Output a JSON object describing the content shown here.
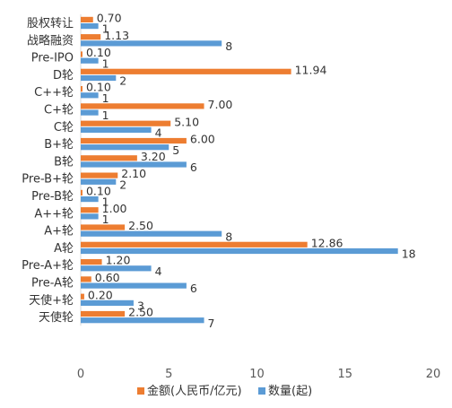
{
  "chart_data": {
    "type": "bar",
    "orientation": "horizontal",
    "categories": [
      "股权转让",
      "战略融资",
      "Pre-IPO",
      "D轮",
      "C++轮",
      "C+轮",
      "C轮",
      "B+轮",
      "B轮",
      "Pre-B+轮",
      "Pre-B轮",
      "A++轮",
      "A+轮",
      "A轮",
      "Pre-A+轮",
      "Pre-A轮",
      "天使+轮",
      "天使轮"
    ],
    "series": [
      {
        "name": "金额(人民币/亿元)",
        "color": "#ed7d31",
        "values": [
          0.7,
          1.13,
          0.1,
          11.94,
          0.1,
          7.0,
          5.1,
          6.0,
          3.2,
          2.1,
          0.1,
          1.0,
          2.5,
          12.86,
          1.2,
          0.6,
          0.2,
          2.5
        ],
        "labels": [
          "0.70",
          "1.13",
          "0.10",
          "11.94",
          "0.10",
          "7.00",
          "5.10",
          "6.00",
          "3.20",
          "2.10",
          "0.10",
          "1.00",
          "2.50",
          "12.86",
          "1.20",
          "0.60",
          "0.20",
          "2.50"
        ]
      },
      {
        "name": "数量(起)",
        "color": "#5b9bd5",
        "values": [
          1,
          8,
          1,
          2,
          1,
          1,
          4,
          5,
          6,
          2,
          1,
          1,
          8,
          18,
          4,
          6,
          3,
          7
        ],
        "labels": [
          "1",
          "8",
          "1",
          "2",
          "1",
          "1",
          "4",
          "5",
          "6",
          "2",
          "1",
          "1",
          "8",
          "18",
          "4",
          "6",
          "3",
          "7"
        ]
      }
    ],
    "xlim": [
      0,
      20
    ],
    "xticks": [
      "0",
      "5",
      "10",
      "15",
      "20"
    ],
    "legend_position": "bottom",
    "grid": false
  }
}
